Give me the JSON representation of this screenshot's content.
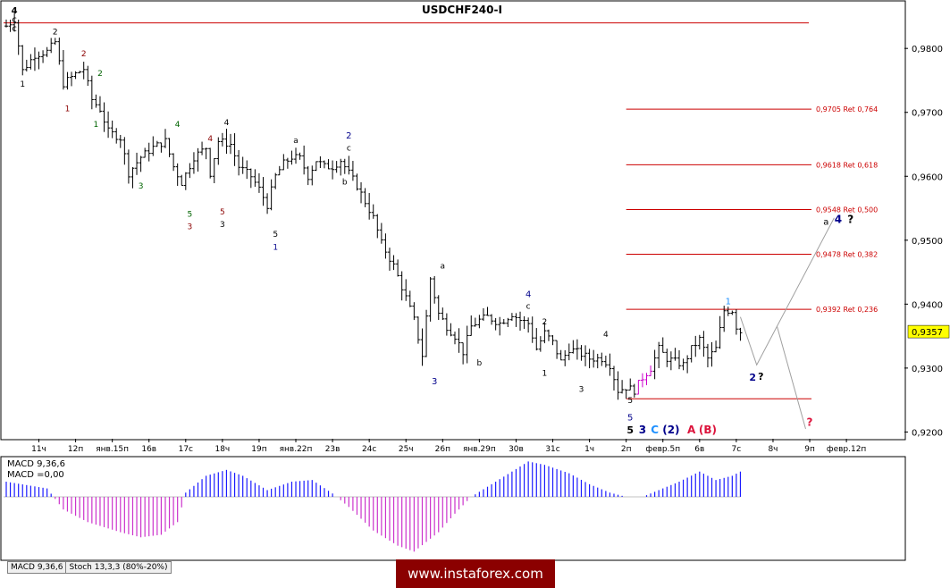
{
  "chart_data": {
    "type": "candlestick",
    "title": "USDCHF240-I",
    "current_price": "0,9357",
    "price_axis": {
      "ylim": [
        0.9195,
        0.9845
      ],
      "ticks": [
        {
          "value": 0.98,
          "label": "0,9800"
        },
        {
          "value": 0.97,
          "label": "0,9700"
        },
        {
          "value": 0.96,
          "label": "0,9600"
        },
        {
          "value": 0.95,
          "label": "0,9500"
        },
        {
          "value": 0.94,
          "label": "0,9400"
        },
        {
          "value": 0.93,
          "label": "0,9300"
        },
        {
          "value": 0.92,
          "label": "0,9200"
        }
      ]
    },
    "time_axis": {
      "bar_count": 220,
      "ticks": [
        {
          "bar": 8,
          "label": "11ч"
        },
        {
          "bar": 17,
          "label": "12п"
        },
        {
          "bar": 26,
          "label": "янв.15п"
        },
        {
          "bar": 35,
          "label": "16в"
        },
        {
          "bar": 44,
          "label": "17с"
        },
        {
          "bar": 53,
          "label": "18ч"
        },
        {
          "bar": 62,
          "label": "19п"
        },
        {
          "bar": 71,
          "label": "янв.22п"
        },
        {
          "bar": 80,
          "label": "23в"
        },
        {
          "bar": 89,
          "label": "24с"
        },
        {
          "bar": 98,
          "label": "25ч"
        },
        {
          "bar": 107,
          "label": "26п"
        },
        {
          "bar": 116,
          "label": "янв.29п"
        },
        {
          "bar": 125,
          "label": "30в"
        },
        {
          "bar": 134,
          "label": "31с"
        },
        {
          "bar": 143,
          "label": "1ч"
        },
        {
          "bar": 152,
          "label": "2п"
        },
        {
          "bar": 161,
          "label": "февр.5п"
        },
        {
          "bar": 170,
          "label": "6в"
        },
        {
          "bar": 179,
          "label": "7с"
        },
        {
          "bar": 188,
          "label": "8ч"
        },
        {
          "bar": 197,
          "label": "9п"
        },
        {
          "bar": 206,
          "label": "февр.12п"
        }
      ]
    },
    "close_path": [
      [
        0,
        0.9835
      ],
      [
        2,
        0.9845
      ],
      [
        4,
        0.9765
      ],
      [
        7,
        0.979
      ],
      [
        10,
        0.9795
      ],
      [
        12,
        0.981
      ],
      [
        14,
        0.9745
      ],
      [
        17,
        0.976
      ],
      [
        19,
        0.9768
      ],
      [
        21,
        0.972
      ],
      [
        23,
        0.9705
      ],
      [
        25,
        0.967
      ],
      [
        28,
        0.966
      ],
      [
        30,
        0.9605
      ],
      [
        33,
        0.963
      ],
      [
        36,
        0.9645
      ],
      [
        39,
        0.9655
      ],
      [
        41,
        0.9615
      ],
      [
        43,
        0.959
      ],
      [
        46,
        0.963
      ],
      [
        49,
        0.9645
      ],
      [
        50,
        0.9605
      ],
      [
        52,
        0.9655
      ],
      [
        55,
        0.965
      ],
      [
        57,
        0.9615
      ],
      [
        60,
        0.96
      ],
      [
        62,
        0.958
      ],
      [
        64,
        0.9555
      ],
      [
        66,
        0.96
      ],
      [
        68,
        0.962
      ],
      [
        70,
        0.963
      ],
      [
        72,
        0.9628
      ],
      [
        74,
        0.96
      ],
      [
        76,
        0.9625
      ],
      [
        78,
        0.9615
      ],
      [
        80,
        0.9615
      ],
      [
        82,
        0.9625
      ],
      [
        84,
        0.9605
      ],
      [
        86,
        0.9585
      ],
      [
        88,
        0.956
      ],
      [
        90,
        0.9535
      ],
      [
        92,
        0.9495
      ],
      [
        95,
        0.946
      ],
      [
        98,
        0.941
      ],
      [
        100,
        0.9375
      ],
      [
        102,
        0.932
      ],
      [
        104,
        0.944
      ],
      [
        106,
        0.9385
      ],
      [
        108,
        0.9365
      ],
      [
        110,
        0.935
      ],
      [
        112,
        0.9325
      ],
      [
        114,
        0.9365
      ],
      [
        116,
        0.9375
      ],
      [
        118,
        0.938
      ],
      [
        121,
        0.937
      ],
      [
        124,
        0.9385
      ],
      [
        126,
        0.9375
      ],
      [
        128,
        0.937
      ],
      [
        130,
        0.933
      ],
      [
        132,
        0.9355
      ],
      [
        134,
        0.934
      ],
      [
        136,
        0.931
      ],
      [
        138,
        0.933
      ],
      [
        140,
        0.9325
      ],
      [
        143,
        0.9315
      ],
      [
        146,
        0.9315
      ],
      [
        148,
        0.9305
      ],
      [
        150,
        0.9265
      ],
      [
        152,
        0.927
      ],
      [
        154,
        0.9265
      ],
      [
        156,
        0.9285
      ],
      [
        158,
        0.93
      ],
      [
        160,
        0.933
      ],
      [
        162,
        0.9315
      ],
      [
        164,
        0.931
      ],
      [
        166,
        0.9305
      ],
      [
        168,
        0.933
      ],
      [
        170,
        0.9345
      ],
      [
        172,
        0.9315
      ],
      [
        174,
        0.933
      ],
      [
        176,
        0.939
      ],
      [
        178,
        0.939
      ],
      [
        179,
        0.9365
      ],
      [
        180,
        0.9357
      ]
    ],
    "horizontal_lines": [
      {
        "price": 0.984,
        "x_start_bar": 0,
        "label": ""
      },
      {
        "price": 0.9705,
        "x_start_bar": 152,
        "label": "0,9705 Ret 0,764"
      },
      {
        "price": 0.9618,
        "x_start_bar": 152,
        "label": "0,9618 Ret 0,618"
      },
      {
        "price": 0.9548,
        "x_start_bar": 152,
        "label": "0,9548 Ret 0,500"
      },
      {
        "price": 0.9478,
        "x_start_bar": 152,
        "label": "0,9478 Ret 0,382"
      },
      {
        "price": 0.9392,
        "x_start_bar": 152,
        "label": "0,9392 Ret 0,236"
      },
      {
        "price": 0.9252,
        "x_start_bar": 152,
        "label": ""
      }
    ],
    "forecast_paths": [
      [
        [
          180,
          0.938
        ],
        [
          184,
          0.9305
        ],
        [
          203,
          0.9535
        ]
      ],
      [
        [
          189,
          0.9365
        ],
        [
          196,
          0.9205
        ]
      ]
    ],
    "wave_labels": [
      {
        "bar": 2,
        "price": 0.98545,
        "text": "4",
        "color": "#000000",
        "size": 10,
        "weight": "bold"
      },
      {
        "bar": 2,
        "price": 0.98405,
        "text": "c",
        "color": "#000000",
        "size": 10
      },
      {
        "bar": 2,
        "price": 0.98265,
        "text": "c",
        "color": "#000000",
        "size": 10
      },
      {
        "bar": 4,
        "price": 0.974,
        "text": "1",
        "color": "#000000",
        "size": 9
      },
      {
        "bar": 12,
        "price": 0.9822,
        "text": "2",
        "color": "#000000",
        "size": 9
      },
      {
        "bar": 15,
        "price": 0.9702,
        "text": "1",
        "color": "#8b0000",
        "size": 9
      },
      {
        "bar": 19,
        "price": 0.9788,
        "text": "2",
        "color": "#8b0000",
        "size": 9
      },
      {
        "bar": 23,
        "price": 0.9757,
        "text": "2",
        "color": "#006400",
        "size": 9
      },
      {
        "bar": 22,
        "price": 0.9677,
        "text": "1",
        "color": "#006400",
        "size": 9
      },
      {
        "bar": 33,
        "price": 0.9581,
        "text": "3",
        "color": "#006400",
        "size": 9
      },
      {
        "bar": 42,
        "price": 0.9677,
        "text": "4",
        "color": "#006400",
        "size": 9
      },
      {
        "bar": 45,
        "price": 0.9537,
        "text": "5",
        "color": "#006400",
        "size": 9
      },
      {
        "bar": 45,
        "price": 0.9517,
        "text": "3",
        "color": "#8b0000",
        "size": 9
      },
      {
        "bar": 50,
        "price": 0.9655,
        "text": "4",
        "color": "#8b0000",
        "size": 9
      },
      {
        "bar": 53,
        "price": 0.954,
        "text": "5",
        "color": "#8b0000",
        "size": 9
      },
      {
        "bar": 53,
        "price": 0.9521,
        "text": "3",
        "color": "#000000",
        "size": 9
      },
      {
        "bar": 54,
        "price": 0.968,
        "text": "4",
        "color": "#000000",
        "size": 9
      },
      {
        "bar": 66,
        "price": 0.9505,
        "text": "5",
        "color": "#000000",
        "size": 9
      },
      {
        "bar": 66,
        "price": 0.9485,
        "text": "1",
        "color": "#00008b",
        "size": 9
      },
      {
        "bar": 71,
        "price": 0.9652,
        "text": "a",
        "color": "#000000",
        "size": 9
      },
      {
        "bar": 84,
        "price": 0.9659,
        "text": "2",
        "color": "#00008b",
        "size": 10
      },
      {
        "bar": 84,
        "price": 0.964,
        "text": "c",
        "color": "#000000",
        "size": 9
      },
      {
        "bar": 83,
        "price": 0.9587,
        "text": "b",
        "color": "#000000",
        "size": 9
      },
      {
        "bar": 107,
        "price": 0.9456,
        "text": "a",
        "color": "#000000",
        "size": 9
      },
      {
        "bar": 105,
        "price": 0.9275,
        "text": "3",
        "color": "#00008b",
        "size": 10
      },
      {
        "bar": 116,
        "price": 0.9304,
        "text": "b",
        "color": "#000000",
        "size": 9
      },
      {
        "bar": 128,
        "price": 0.9411,
        "text": "4",
        "color": "#00008b",
        "size": 10
      },
      {
        "bar": 128,
        "price": 0.9393,
        "text": "c",
        "color": "#000000",
        "size": 9
      },
      {
        "bar": 132,
        "price": 0.9368,
        "text": "2",
        "color": "#000000",
        "size": 9
      },
      {
        "bar": 132,
        "price": 0.9288,
        "text": "1",
        "color": "#000000",
        "size": 9
      },
      {
        "bar": 141,
        "price": 0.9263,
        "text": "3",
        "color": "#000000",
        "size": 9
      },
      {
        "bar": 147,
        "price": 0.9349,
        "text": "4",
        "color": "#000000",
        "size": 9
      },
      {
        "bar": 153,
        "price": 0.9245,
        "text": "5",
        "color": "#000000",
        "size": 9
      },
      {
        "bar": 153,
        "price": 0.9218,
        "text": "5",
        "color": "#00008b",
        "size": 10
      },
      {
        "bar": 153,
        "price": 0.9198,
        "text": "5",
        "color": "#000000",
        "size": 11,
        "weight": "bold"
      },
      {
        "bar": 156,
        "price": 0.9198,
        "text": "3",
        "color": "#00008b",
        "size": 12,
        "weight": "bold"
      },
      {
        "bar": 159,
        "price": 0.9198,
        "text": "C",
        "color": "#1e90ff",
        "size": 12,
        "weight": "bold"
      },
      {
        "bar": 163,
        "price": 0.9198,
        "text": "(2)",
        "color": "#00008b",
        "size": 12,
        "weight": "bold"
      },
      {
        "bar": 168,
        "price": 0.9198,
        "text": "A",
        "color": "#dc143c",
        "size": 12,
        "weight": "bold"
      },
      {
        "bar": 172,
        "price": 0.9198,
        "text": "(B)",
        "color": "#dc143c",
        "size": 12,
        "weight": "bold"
      },
      {
        "bar": 177,
        "price": 0.94,
        "text": "1",
        "color": "#1e90ff",
        "size": 10
      },
      {
        "bar": 183,
        "price": 0.928,
        "text": "2",
        "color": "#00008b",
        "size": 11,
        "weight": "bold"
      },
      {
        "bar": 185,
        "price": 0.9282,
        "text": "?",
        "color": "#000000",
        "size": 11,
        "weight": "bold"
      },
      {
        "bar": 201,
        "price": 0.9524,
        "text": "a",
        "color": "#000000",
        "size": 10
      },
      {
        "bar": 204,
        "price": 0.9527,
        "text": "4",
        "color": "#00008b",
        "size": 12,
        "weight": "bold"
      },
      {
        "bar": 207,
        "price": 0.9527,
        "text": "?",
        "color": "#000000",
        "size": 12,
        "weight": "bold"
      },
      {
        "bar": 197,
        "price": 0.921,
        "text": "?",
        "color": "#dc143c",
        "size": 12,
        "weight": "bold"
      }
    ],
    "macd": {
      "label_line1": "MACD 9,36,6",
      "label_line2": "MACD =0,00",
      "zero_line_bar_end": 180,
      "histogram": [
        [
          0,
          18
        ],
        [
          10,
          10
        ],
        [
          14,
          -15
        ],
        [
          20,
          -30
        ],
        [
          28,
          -42
        ],
        [
          33,
          -48
        ],
        [
          38,
          -45
        ],
        [
          42,
          -30
        ],
        [
          44,
          5
        ],
        [
          49,
          25
        ],
        [
          54,
          32
        ],
        [
          58,
          25
        ],
        [
          64,
          8
        ],
        [
          70,
          18
        ],
        [
          75,
          20
        ],
        [
          80,
          4
        ],
        [
          84,
          -12
        ],
        [
          90,
          -40
        ],
        [
          96,
          -58
        ],
        [
          100,
          -65
        ],
        [
          106,
          -42
        ],
        [
          110,
          -20
        ],
        [
          114,
          0
        ],
        [
          118,
          12
        ],
        [
          124,
          30
        ],
        [
          128,
          42
        ],
        [
          132,
          38
        ],
        [
          138,
          28
        ],
        [
          143,
          15
        ],
        [
          148,
          5
        ],
        [
          152,
          0
        ],
        [
          156,
          0
        ],
        [
          160,
          8
        ],
        [
          165,
          18
        ],
        [
          170,
          30
        ],
        [
          174,
          20
        ],
        [
          178,
          25
        ],
        [
          180,
          30
        ]
      ]
    },
    "indicator_tabs": [
      "MACD 9,36,6",
      "Stoch 13,3,3 (80%-20%)"
    ]
  },
  "watermark": "www.instaforex.com"
}
